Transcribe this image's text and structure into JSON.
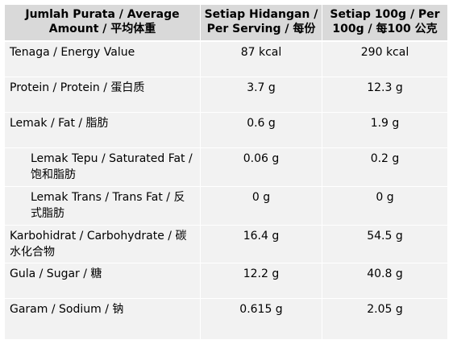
{
  "table": {
    "headers": [
      "Jumlah Purata / Average Amount / 平均体重",
      "Setiap Hidangan / Per Serving / 每份",
      "Setiap 100g / Per 100g / 每100 公克"
    ],
    "rows": [
      {
        "name": "Tenaga / Energy Value",
        "per_serving": "87 kcal",
        "per_100g": "290 kcal"
      },
      {
        "name": "Protein / Protein / 蛋白质",
        "per_serving": "3.7 g",
        "per_100g": "12.3 g"
      },
      {
        "name": "Lemak / Fat / 脂肪",
        "per_serving": "0.6 g",
        "per_100g": "1.9 g"
      },
      {
        "name": "Lemak Tepu / Saturated Fat / 饱和脂肪",
        "per_serving": "0.06 g",
        "per_100g": "0.2 g"
      },
      {
        "name": "Lemak Trans / Trans Fat / 反式脂肪",
        "per_serving": "0 g",
        "per_100g": "0 g"
      },
      {
        "name": "Karbohidrat / Carbohydrate / 碳水化合物",
        "per_serving": "16.4 g",
        "per_100g": "54.5 g"
      },
      {
        "name": "Gula / Sugar / 糖",
        "per_serving": "12.2 g",
        "per_100g": "40.8 g"
      },
      {
        "name": "Garam / Sodium / 钠",
        "per_serving": "0.615 g",
        "per_100g": "2.05 g"
      }
    ]
  }
}
